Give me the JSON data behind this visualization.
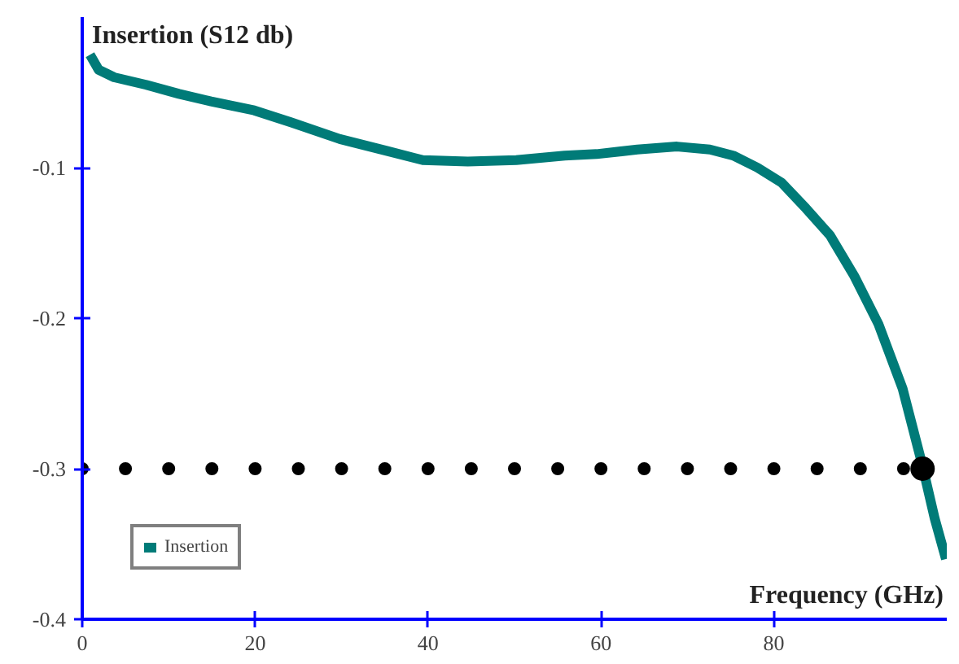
{
  "chart_data": {
    "type": "line",
    "xlabel": "Frequency (GHz)",
    "ylabel": "Insertion (S12 db)",
    "xlim": [
      0,
      100
    ],
    "ylim": [
      -0.4,
      0
    ],
    "xticks": [
      0,
      20,
      40,
      60,
      80
    ],
    "yticks": [
      -0.1,
      -0.2,
      -0.3,
      -0.4
    ],
    "grid": false,
    "legend": "bottom left",
    "tick_labels": true,
    "series": [
      {
        "name": "Insertion",
        "color": "#007b78",
        "marker": "none",
        "x": [
          0.9,
          1.9,
          3.7,
          7.4,
          11.2,
          14.9,
          19.9,
          24.2,
          29.8,
          35.3,
          39.4,
          44.6,
          50.2,
          55.8,
          59.5,
          64.2,
          68.8,
          72.6,
          75.3,
          78.1,
          80.9,
          83.7,
          86.5,
          89.3,
          92.1,
          94.9,
          97.1,
          98.6,
          99.9
        ],
        "values": [
          -0.025,
          -0.035,
          -0.04,
          -0.045,
          -0.051,
          -0.056,
          -0.062,
          -0.07,
          -0.081,
          -0.089,
          -0.095,
          -0.096,
          -0.095,
          -0.092,
          -0.091,
          -0.088,
          -0.086,
          -0.088,
          -0.092,
          -0.1,
          -0.11,
          -0.127,
          -0.145,
          -0.172,
          -0.204,
          -0.247,
          -0.296,
          -0.333,
          -0.36
        ]
      },
      {
        "type": "scatter",
        "color": "#000000",
        "marker": "circle",
        "x": [
          0,
          5,
          10,
          15,
          20,
          25,
          30,
          35,
          40,
          45,
          50,
          55,
          60,
          65,
          70,
          75,
          80,
          85,
          90,
          95
        ],
        "values": [
          -0.3,
          -0.3,
          -0.3,
          -0.3,
          -0.3,
          -0.3,
          -0.3,
          -0.3,
          -0.3,
          -0.3,
          -0.3,
          -0.3,
          -0.3,
          -0.3,
          -0.3,
          -0.3,
          -0.3,
          -0.3,
          -0.3,
          -0.3
        ]
      },
      {
        "type": "scatter",
        "color": "#000000",
        "marker": "circle",
        "x": [
          97.2
        ],
        "values": [
          -0.3
        ]
      }
    ]
  }
}
